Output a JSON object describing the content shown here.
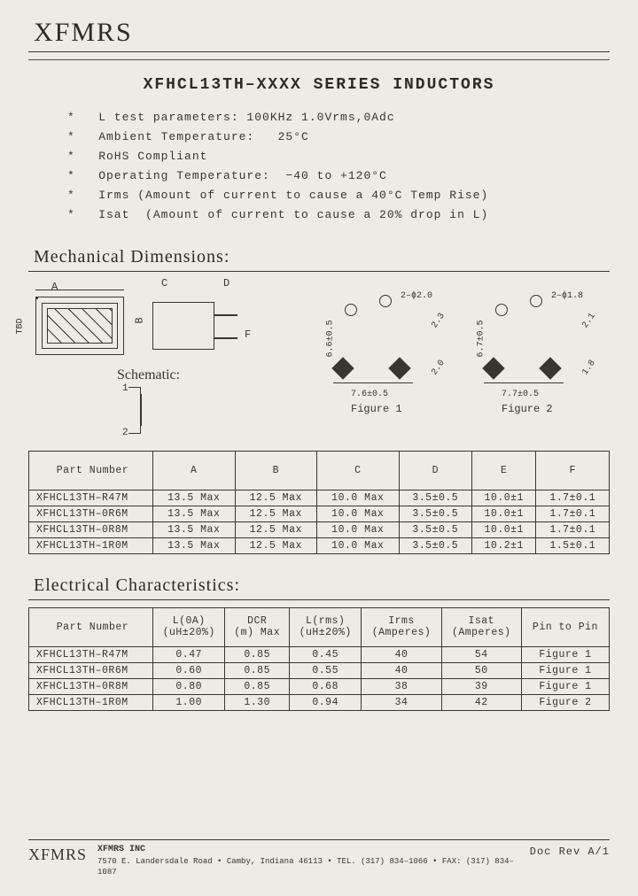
{
  "brand": "XFMRS",
  "title": "XFHCL13TH–XXXX  SERIES  INDUCTORS",
  "specs": [
    "L test parameters: 100KHz 1.0Vrms,0Adc",
    "Ambient Temperature:   25°C",
    "RoHS Compliant",
    "Operating Temperature:  −40 to +120°C",
    "Irms (Amount of current to cause a 40°C Temp Rise)",
    "Isat  (Amount of current to cause a 20% drop in L)"
  ],
  "mech_title": "Mechanical Dimensions:",
  "schematic_label": "Schematic:",
  "dim_labels": {
    "A": "A",
    "B": "B",
    "C": "C",
    "D": "D",
    "F": "F",
    "TBD": "TBD"
  },
  "footprints": {
    "fig1": {
      "label": "Figure 1",
      "hole": "2–ϕ2.0",
      "v": "6.6±0.5",
      "h": "7.6±0.5",
      "d1": "2.3",
      "d2": "2.0"
    },
    "fig2": {
      "label": "Figure 2",
      "hole": "2–ϕ1.8",
      "v": "6.7±0.5",
      "h": "7.7±0.5",
      "d1": "2.1",
      "d2": "1.8"
    }
  },
  "mech_table": {
    "columns": [
      "Part Number",
      "A",
      "B",
      "C",
      "D",
      "E",
      "F"
    ],
    "col_widths": [
      "140px",
      "",
      "",
      "",
      "",
      "",
      ""
    ],
    "rows": [
      [
        "XFHCL13TH–R47M",
        "13.5 Max",
        "12.5 Max",
        "10.0 Max",
        "3.5±0.5",
        "10.0±1",
        "1.7±0.1"
      ],
      [
        "XFHCL13TH–0R6M",
        "13.5 Max",
        "12.5 Max",
        "10.0 Max",
        "3.5±0.5",
        "10.0±1",
        "1.7±0.1"
      ],
      [
        "XFHCL13TH–0R8M",
        "13.5 Max",
        "12.5 Max",
        "10.0 Max",
        "3.5±0.5",
        "10.0±1",
        "1.7±0.1"
      ],
      [
        "XFHCL13TH–1R0M",
        "13.5 Max",
        "12.5 Max",
        "10.0 Max",
        "3.5±0.5",
        "10.2±1",
        "1.5±0.1"
      ]
    ]
  },
  "elec_title": "Electrical Characteristics:",
  "elec_table": {
    "columns": [
      "Part Number",
      "L(0A)\n(uH±20%)",
      "DCR\n(m) Max",
      "L(rms)\n(uH±20%)",
      "Irms\n(Amperes)",
      "Isat\n(Amperes)",
      "Pin to Pin"
    ],
    "rows": [
      [
        "XFHCL13TH–R47M",
        "0.47",
        "0.85",
        "0.45",
        "40",
        "54",
        "Figure 1"
      ],
      [
        "XFHCL13TH–0R6M",
        "0.60",
        "0.85",
        "0.55",
        "40",
        "50",
        "Figure 1"
      ],
      [
        "XFHCL13TH–0R8M",
        "0.80",
        "0.85",
        "0.68",
        "38",
        "39",
        "Figure 1"
      ],
      [
        "XFHCL13TH–1R0M",
        "1.00",
        "1.30",
        "0.94",
        "34",
        "42",
        "Figure 2"
      ]
    ]
  },
  "footer": {
    "brand": "XFMRS",
    "company": "XFMRS INC",
    "address": "7570 E. Landersdale Road • Camby, Indiana 46113 • TEL. (317) 834–1066 • FAX: (317) 834–1087",
    "rev": "Doc Rev A/1"
  },
  "schem_pins": {
    "p1": "1",
    "p2": "2"
  },
  "colors": {
    "bg": "#ecebe5",
    "ink": "#3a352f"
  }
}
